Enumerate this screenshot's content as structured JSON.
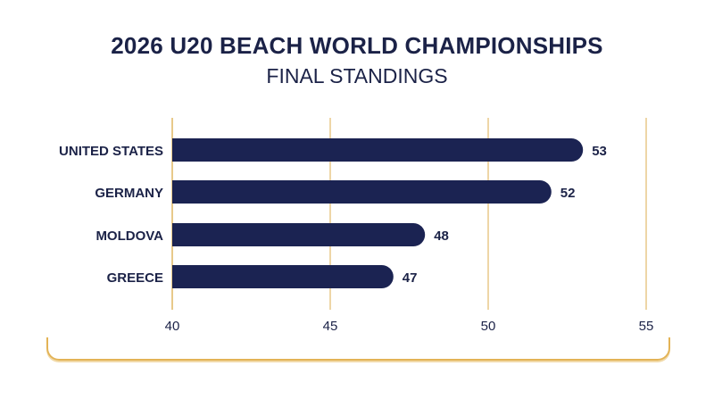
{
  "header": {
    "title": "2026 U20 BEACH WORLD CHAMPIONSHIPS",
    "subtitle": "FINAL STANDINGS"
  },
  "colors": {
    "bar": "#1b2352",
    "grid": "#e8c98a",
    "text": "#1b2247",
    "accent": "#e3b356"
  },
  "chart_data": {
    "type": "bar",
    "orientation": "horizontal",
    "title": "2026 U20 BEACH WORLD CHAMPIONSHIPS",
    "subtitle": "FINAL STANDINGS",
    "categories": [
      "UNITED STATES",
      "GERMANY",
      "MOLDOVA",
      "GREECE"
    ],
    "values": [
      53,
      52,
      48,
      47
    ],
    "xlim": [
      40,
      55
    ],
    "xticks": [
      40,
      45,
      50,
      55
    ],
    "xlabel": "",
    "ylabel": "",
    "grid": true
  }
}
